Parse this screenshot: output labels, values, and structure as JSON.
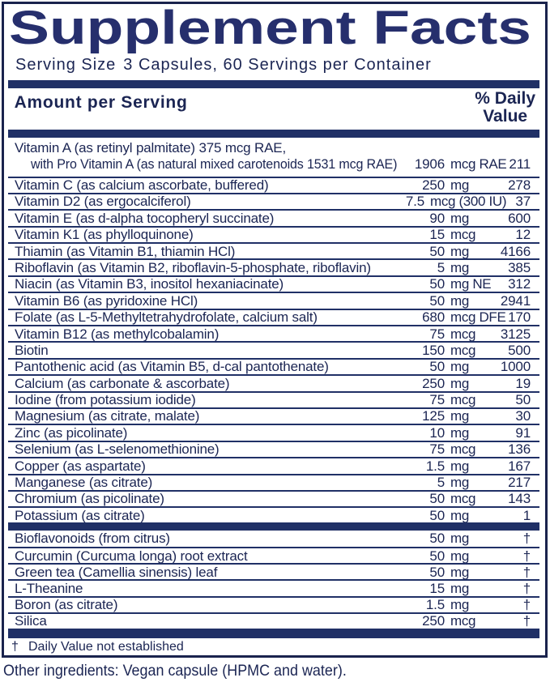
{
  "panel": {
    "title": "Supplement Facts",
    "serving_label": "Serving Size",
    "serving_value": "3 Capsules, 60 Servings per Container",
    "columns": {
      "amount_header": "Amount per Serving",
      "dv_header_line1": "% Daily",
      "dv_header_line2": "Value"
    },
    "colors": {
      "navy_bar": "#203066",
      "text_navy": "#1b2553",
      "background": "#ffffff"
    },
    "main_rows": [
      {
        "name": "Vitamin A (as retinyl palmitate) 375 mcg RAE,",
        "name_line2": "with Pro Vitamin A (as natural mixed carotenoids 1531 mcg RAE)",
        "amount": "1906",
        "unit": "mcg RAE",
        "dv": "211"
      },
      {
        "name": "Vitamin C (as calcium ascorbate, buffered)",
        "amount": "250",
        "unit": "mg",
        "dv": "278"
      },
      {
        "name": "Vitamin D2 (as ergocalciferol)",
        "amount": "7.5",
        "unit": "mcg (300 IU)",
        "dv": "37"
      },
      {
        "name": "Vitamin E (as d-alpha tocopheryl succinate)",
        "amount": "90",
        "unit": "mg",
        "dv": "600"
      },
      {
        "name": "Vitamin K1 (as phylloquinone)",
        "amount": "15",
        "unit": "mcg",
        "dv": "12"
      },
      {
        "name": "Thiamin (as Vitamin B1, thiamin HCl)",
        "amount": "50",
        "unit": "mg",
        "dv": "4166"
      },
      {
        "name": "Riboflavin (as Vitamin B2, riboflavin-5-phosphate, riboflavin)",
        "amount": "5",
        "unit": "mg",
        "dv": "385"
      },
      {
        "name": "Niacin (as Vitamin B3, inositol hexaniacinate)",
        "amount": "50",
        "unit": "mg NE",
        "dv": "312"
      },
      {
        "name": "Vitamin B6 (as pyridoxine HCl)",
        "amount": "50",
        "unit": "mg",
        "dv": "2941"
      },
      {
        "name": "Folate (as L-5-Methyltetrahydrofolate, calcium salt)",
        "amount": "680",
        "unit": "mcg DFE",
        "dv": "170"
      },
      {
        "name": "Vitamin B12 (as methylcobalamin)",
        "amount": "75",
        "unit": "mcg",
        "dv": "3125"
      },
      {
        "name": "Biotin",
        "amount": "150",
        "unit": "mcg",
        "dv": "500"
      },
      {
        "name": "Pantothenic acid (as Vitamin B5, d-cal pantothenate)",
        "amount": "50",
        "unit": "mg",
        "dv": "1000"
      },
      {
        "name": "Calcium (as carbonate & ascorbate)",
        "amount": "250",
        "unit": "mg",
        "dv": "19"
      },
      {
        "name": "Iodine (from potassium iodide)",
        "amount": "75",
        "unit": "mcg",
        "dv": "50"
      },
      {
        "name": "Magnesium (as citrate, malate)",
        "amount": "125",
        "unit": "mg",
        "dv": "30"
      },
      {
        "name": "Zinc (as picolinate)",
        "amount": "10",
        "unit": "mg",
        "dv": "91"
      },
      {
        "name": "Selenium (as L-selenomethionine)",
        "amount": "75",
        "unit": "mcg",
        "dv": "136"
      },
      {
        "name": "Copper (as aspartate)",
        "amount": "1.5",
        "unit": "mg",
        "dv": "167"
      },
      {
        "name": "Manganese (as citrate)",
        "amount": "5",
        "unit": "mg",
        "dv": "217"
      },
      {
        "name": "Chromium (as picolinate)",
        "amount": "50",
        "unit": "mcg",
        "dv": "143"
      },
      {
        "name": "Potassium (as citrate)",
        "amount": "50",
        "unit": "mg",
        "dv": "1"
      }
    ],
    "extra_rows": [
      {
        "name": "Bioflavonoids (from citrus)",
        "amount": "50",
        "unit": "mg",
        "dv": "†"
      },
      {
        "name": "Curcumin (Curcuma longa) root extract",
        "amount": "50",
        "unit": "mg",
        "dv": "†"
      },
      {
        "name": "Green tea (Camellia sinensis) leaf",
        "amount": "50",
        "unit": "mg",
        "dv": "†"
      },
      {
        "name": "L-Theanine",
        "amount": "15",
        "unit": "mg",
        "dv": "†"
      },
      {
        "name": "Boron (as citrate)",
        "amount": "1.5",
        "unit": "mg",
        "dv": "†"
      },
      {
        "name": "Silica",
        "amount": "250",
        "unit": "mcg",
        "dv": "†"
      }
    ],
    "footnote": {
      "symbol": "†",
      "text": "Daily Value not established"
    },
    "other_ingredients": "Other ingredients: Vegan capsule (HPMC and water)."
  }
}
